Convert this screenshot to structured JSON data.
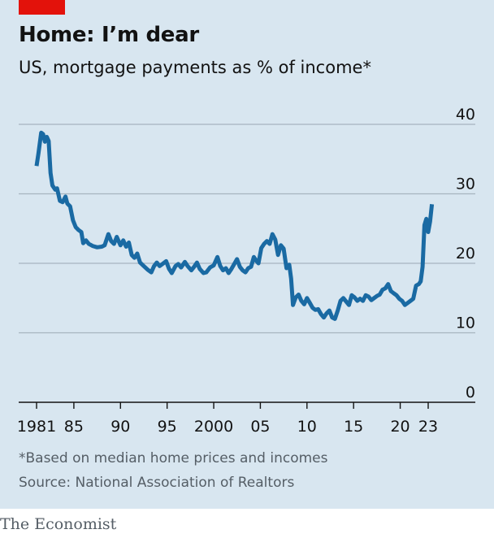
{
  "header": {
    "title": "Home: I’m dear",
    "subtitle": "US, mortgage payments as % of income*"
  },
  "footer": {
    "footnote": "*Based on median home prices and incomes",
    "source": "Source: National Association of Realtors",
    "brand": "The Economist"
  },
  "colors": {
    "background": "#d8e6f0",
    "line": "#1a6aa3",
    "accent_tag": "#e3120b",
    "gridline": "#a6b4bf",
    "axis": "#121212"
  },
  "chart_data": {
    "type": "line",
    "title": "Home: I’m dear",
    "subtitle": "US, mortgage payments as % of income*",
    "xlabel": "",
    "ylabel": "",
    "xlim": [
      1981,
      2023.5
    ],
    "ylim": [
      0,
      40
    ],
    "yticks": [
      0,
      10,
      20,
      30,
      40
    ],
    "ytick_labels": [
      "0",
      "10",
      "20",
      "30",
      "40"
    ],
    "xticks": [
      1981,
      1985,
      1990,
      1995,
      2000,
      2005,
      2010,
      2015,
      2020,
      2023
    ],
    "xtick_labels": [
      "1981",
      "85",
      "90",
      "95",
      "2000",
      "05",
      "10",
      "15",
      "20",
      "23"
    ],
    "grid": true,
    "legend": "none",
    "series": [
      {
        "points": [
          [
            1981.0,
            34.0
          ],
          [
            1981.2,
            35.8
          ],
          [
            1981.5,
            38.8
          ],
          [
            1981.7,
            38.6
          ],
          [
            1981.9,
            37.5
          ],
          [
            1982.1,
            38.2
          ],
          [
            1982.3,
            37.6
          ],
          [
            1982.5,
            33.0
          ],
          [
            1982.7,
            31.2
          ],
          [
            1983.0,
            30.6
          ],
          [
            1983.2,
            30.8
          ],
          [
            1983.5,
            29.0
          ],
          [
            1983.8,
            28.8
          ],
          [
            1984.1,
            29.6
          ],
          [
            1984.3,
            28.6
          ],
          [
            1984.6,
            28.2
          ],
          [
            1984.9,
            26.2
          ],
          [
            1985.2,
            25.2
          ],
          [
            1985.5,
            24.8
          ],
          [
            1985.8,
            24.5
          ],
          [
            1986.0,
            22.9
          ],
          [
            1986.3,
            23.3
          ],
          [
            1986.6,
            22.8
          ],
          [
            1987.0,
            22.5
          ],
          [
            1987.5,
            22.3
          ],
          [
            1988.0,
            22.4
          ],
          [
            1988.3,
            22.6
          ],
          [
            1988.7,
            24.2
          ],
          [
            1989.0,
            23.2
          ],
          [
            1989.3,
            22.8
          ],
          [
            1989.6,
            23.8
          ],
          [
            1990.0,
            22.6
          ],
          [
            1990.3,
            23.3
          ],
          [
            1990.6,
            22.4
          ],
          [
            1990.9,
            23.0
          ],
          [
            1991.2,
            21.2
          ],
          [
            1991.5,
            20.8
          ],
          [
            1991.8,
            21.4
          ],
          [
            1992.1,
            20.1
          ],
          [
            1992.5,
            19.6
          ],
          [
            1992.9,
            19.1
          ],
          [
            1993.3,
            18.7
          ],
          [
            1993.6,
            19.6
          ],
          [
            1993.9,
            20.1
          ],
          [
            1994.2,
            19.6
          ],
          [
            1994.5,
            19.9
          ],
          [
            1994.9,
            20.3
          ],
          [
            1995.2,
            19.2
          ],
          [
            1995.5,
            18.6
          ],
          [
            1995.9,
            19.6
          ],
          [
            1996.2,
            19.9
          ],
          [
            1996.5,
            19.4
          ],
          [
            1996.9,
            20.2
          ],
          [
            1997.2,
            19.6
          ],
          [
            1997.6,
            19.0
          ],
          [
            1997.9,
            19.5
          ],
          [
            1998.2,
            20.1
          ],
          [
            1998.5,
            19.2
          ],
          [
            1998.9,
            18.6
          ],
          [
            1999.2,
            18.7
          ],
          [
            1999.6,
            19.4
          ],
          [
            2000.0,
            19.7
          ],
          [
            2000.4,
            20.9
          ],
          [
            2000.7,
            19.6
          ],
          [
            2001.0,
            19.0
          ],
          [
            2001.3,
            19.3
          ],
          [
            2001.6,
            18.6
          ],
          [
            2001.9,
            19.2
          ],
          [
            2002.2,
            19.9
          ],
          [
            2002.5,
            20.6
          ],
          [
            2002.8,
            19.5
          ],
          [
            2003.1,
            19.0
          ],
          [
            2003.4,
            18.7
          ],
          [
            2003.7,
            19.3
          ],
          [
            2004.0,
            19.5
          ],
          [
            2004.3,
            20.9
          ],
          [
            2004.6,
            20.3
          ],
          [
            2004.8,
            20.0
          ],
          [
            2005.1,
            22.2
          ],
          [
            2005.4,
            22.8
          ],
          [
            2005.7,
            23.2
          ],
          [
            2006.0,
            22.8
          ],
          [
            2006.3,
            24.2
          ],
          [
            2006.6,
            23.4
          ],
          [
            2006.9,
            21.2
          ],
          [
            2007.2,
            22.6
          ],
          [
            2007.5,
            22.1
          ],
          [
            2007.8,
            19.3
          ],
          [
            2008.1,
            19.8
          ],
          [
            2008.3,
            17.8
          ],
          [
            2008.5,
            14.0
          ],
          [
            2008.8,
            15.1
          ],
          [
            2009.1,
            15.5
          ],
          [
            2009.4,
            14.6
          ],
          [
            2009.7,
            14.1
          ],
          [
            2010.0,
            15.0
          ],
          [
            2010.3,
            14.3
          ],
          [
            2010.6,
            13.6
          ],
          [
            2010.9,
            13.3
          ],
          [
            2011.2,
            13.4
          ],
          [
            2011.5,
            12.7
          ],
          [
            2011.8,
            12.2
          ],
          [
            2012.1,
            12.8
          ],
          [
            2012.4,
            13.2
          ],
          [
            2012.7,
            12.2
          ],
          [
            2013.0,
            12.0
          ],
          [
            2013.3,
            13.2
          ],
          [
            2013.6,
            14.6
          ],
          [
            2013.9,
            15.0
          ],
          [
            2014.2,
            14.5
          ],
          [
            2014.5,
            14.0
          ],
          [
            2014.8,
            15.4
          ],
          [
            2015.1,
            15.1
          ],
          [
            2015.4,
            14.6
          ],
          [
            2015.7,
            14.9
          ],
          [
            2016.0,
            14.6
          ],
          [
            2016.3,
            15.4
          ],
          [
            2016.6,
            15.2
          ],
          [
            2016.9,
            14.7
          ],
          [
            2017.2,
            15.0
          ],
          [
            2017.5,
            15.3
          ],
          [
            2017.8,
            15.5
          ],
          [
            2018.1,
            16.2
          ],
          [
            2018.4,
            16.4
          ],
          [
            2018.7,
            17.0
          ],
          [
            2019.0,
            16.0
          ],
          [
            2019.3,
            15.7
          ],
          [
            2019.6,
            15.4
          ],
          [
            2019.9,
            14.9
          ],
          [
            2020.2,
            14.6
          ],
          [
            2020.5,
            14.0
          ],
          [
            2020.8,
            14.3
          ],
          [
            2021.1,
            14.6
          ],
          [
            2021.4,
            14.9
          ],
          [
            2021.7,
            16.8
          ],
          [
            2022.0,
            17.0
          ],
          [
            2022.2,
            17.4
          ],
          [
            2022.4,
            19.5
          ],
          [
            2022.6,
            25.5
          ],
          [
            2022.8,
            26.4
          ],
          [
            2023.0,
            24.5
          ],
          [
            2023.2,
            26.0
          ],
          [
            2023.4,
            28.5
          ]
        ]
      }
    ]
  }
}
